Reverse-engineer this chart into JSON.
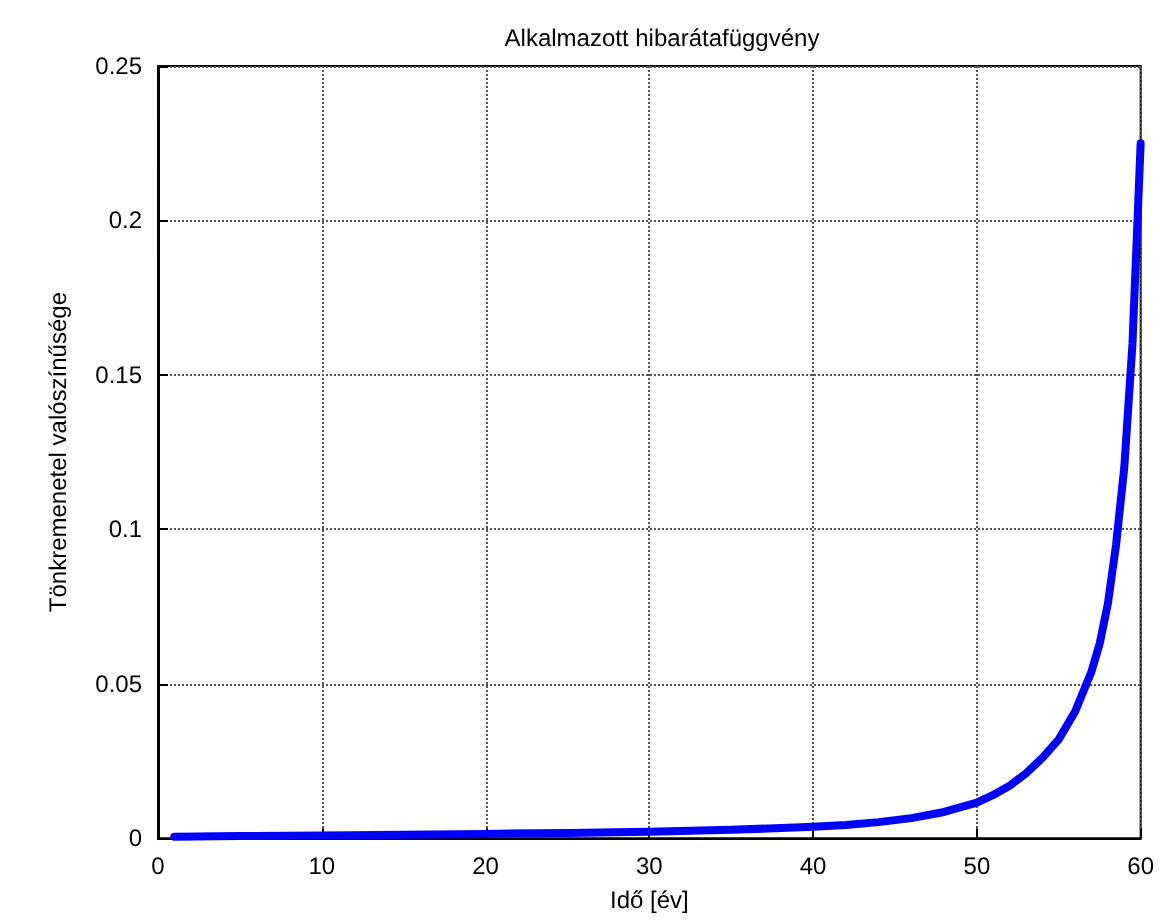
{
  "chart_data": {
    "type": "line",
    "title": "Alkalmazott hibarátafüggvény",
    "xlabel": "Idő [év]",
    "ylabel": "Tönkremenetel valószínűsége",
    "series": [
      {
        "color": "#0000ff",
        "x": [
          1,
          5,
          10,
          15,
          20,
          25,
          30,
          35,
          40,
          42,
          44,
          46,
          48,
          50,
          51,
          52,
          53,
          54,
          55,
          56,
          57,
          57.5,
          58,
          58.5,
          59,
          59.5,
          60
        ],
        "values": [
          0.0005,
          0.0007,
          0.0009,
          0.0011,
          0.0014,
          0.0017,
          0.0021,
          0.0027,
          0.0037,
          0.0043,
          0.0052,
          0.0065,
          0.0085,
          0.0115,
          0.014,
          0.017,
          0.021,
          0.026,
          0.032,
          0.041,
          0.054,
          0.063,
          0.076,
          0.095,
          0.12,
          0.16,
          0.225
        ]
      }
    ],
    "xlim": [
      0,
      60
    ],
    "xticks": [
      0,
      10,
      20,
      30,
      40,
      50,
      60
    ],
    "ylim": [
      0,
      0.25
    ],
    "yticks": [
      0,
      0.05,
      0.1,
      0.15,
      0.2,
      0.25
    ],
    "grid": true,
    "marker": "none",
    "line_style": "solid"
  }
}
